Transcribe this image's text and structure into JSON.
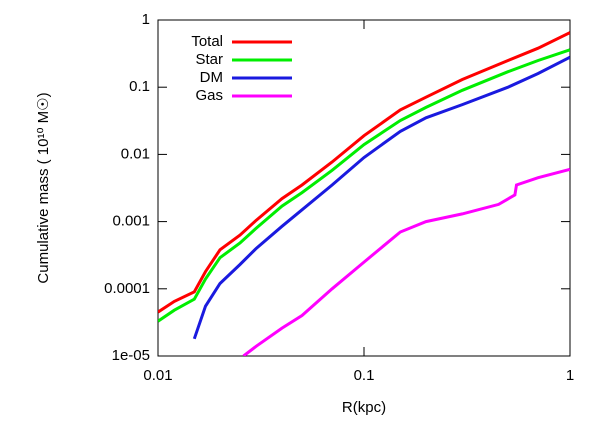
{
  "chart_data": {
    "type": "line",
    "xlabel": "R(kpc)",
    "ylabel": "Cumulative mass ( 10¹⁰ M☉)",
    "xscale": "log",
    "yscale": "log",
    "xlim": [
      0.01,
      1
    ],
    "ylim": [
      1e-05,
      1
    ],
    "xticks": [
      0.01,
      0.1,
      1
    ],
    "yticks": [
      {
        "value": 1e-05,
        "label": "1e-05"
      },
      0.0001,
      0.001,
      0.01,
      0.1,
      1
    ],
    "legend": "upper-left",
    "series": [
      {
        "name": "Total",
        "color": "#ff0000",
        "x": [
          0.01,
          0.012,
          0.015,
          0.017,
          0.02,
          0.025,
          0.03,
          0.04,
          0.05,
          0.07,
          0.1,
          0.15,
          0.2,
          0.3,
          0.5,
          0.7,
          1
        ],
        "values": [
          4.5e-05,
          6.5e-05,
          9e-05,
          0.00018,
          0.00038,
          0.00063,
          0.00105,
          0.0022,
          0.0035,
          0.0077,
          0.019,
          0.046,
          0.071,
          0.13,
          0.25,
          0.38,
          0.65
        ]
      },
      {
        "name": "Star",
        "color": "#00ee00",
        "x": [
          0.01,
          0.012,
          0.015,
          0.017,
          0.02,
          0.025,
          0.03,
          0.04,
          0.05,
          0.07,
          0.1,
          0.15,
          0.2,
          0.3,
          0.5,
          0.7,
          1
        ],
        "values": [
          3.3e-05,
          4.8e-05,
          7e-05,
          0.00014,
          0.00029,
          0.00048,
          0.0008,
          0.0017,
          0.0027,
          0.0058,
          0.014,
          0.032,
          0.05,
          0.09,
          0.17,
          0.25,
          0.36
        ]
      },
      {
        "name": "DM",
        "color": "#1a1adf",
        "x": [
          0.015,
          0.017,
          0.02,
          0.025,
          0.03,
          0.04,
          0.05,
          0.07,
          0.1,
          0.15,
          0.2,
          0.3,
          0.5,
          0.7,
          1
        ],
        "values": [
          1.8e-05,
          5.5e-05,
          0.00012,
          0.00023,
          0.0004,
          0.00085,
          0.0015,
          0.0035,
          0.009,
          0.022,
          0.035,
          0.055,
          0.1,
          0.16,
          0.28
        ]
      },
      {
        "name": "Gas",
        "color": "#ff00ff",
        "x": [
          0.026,
          0.03,
          0.04,
          0.05,
          0.07,
          0.1,
          0.15,
          0.2,
          0.3,
          0.45,
          0.54,
          0.55,
          0.7,
          1
        ],
        "values": [
          1e-05,
          1.4e-05,
          2.6e-05,
          4e-05,
          0.0001,
          0.00025,
          0.0007,
          0.001,
          0.0013,
          0.0018,
          0.0025,
          0.0035,
          0.0045,
          0.006
        ]
      }
    ]
  }
}
